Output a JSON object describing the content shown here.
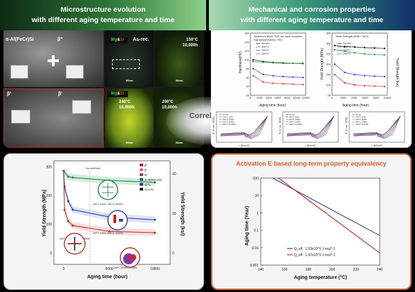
{
  "banners": {
    "left": [
      "Microstructure evolution",
      "with different aging temperature and time"
    ],
    "right": [
      "Mechanical and corrosion properties",
      "with different aging temperature and time"
    ]
  },
  "micro": {
    "phases": {
      "alpha": "α-Al(FeCr)Si",
      "beta_dp": "β''",
      "beta_p": "β'",
      "beta_pp": "β'"
    },
    "element_tag": {
      "mg": "Mg",
      "amp": "&",
      "si": "Si"
    },
    "as_rec": "As-rec.",
    "c150": [
      "150°C",
      "10,000h"
    ],
    "c200": [
      "200°C",
      "10,000h"
    ],
    "c240": [
      "240°C",
      "10,000h"
    ],
    "scale": {
      "s50": "50nm",
      "s50b": "50nm",
      "s58a": "58nm",
      "s58b": "58nm"
    }
  },
  "correlation": "Correlation",
  "top_charts": {
    "hardness": {
      "legend_title": [
        "Aluminum 6061 T6/O for each condition",
        "Hardness(Vickers, HV)"
      ],
      "series": [
        "As-rec.",
        "150°C",
        "200°C",
        "240°C"
      ],
      "xlabel": "Aging time (hour)",
      "ylabel": "Hardness(HV)",
      "yticks": [
        "160",
        "140",
        "120",
        "100",
        "80",
        "60",
        "40",
        "20"
      ],
      "xticks": [
        "0",
        "2000",
        "4000",
        "6000",
        "8000",
        "10000",
        "12000"
      ],
      "colors": [
        "#111111",
        "#2c9a3a",
        "#3a3aff",
        "#e03030"
      ],
      "data": [
        [
          100,
          96,
          94,
          93,
          92,
          92
        ],
        [
          96,
          94,
          93,
          92,
          92,
          91
        ],
        [
          80,
          67,
          64,
          62,
          61,
          60
        ],
        [
          64,
          50,
          47,
          46,
          45,
          44
        ]
      ]
    },
    "yield": {
      "legend_title": "Yield Strength (6061 T6/O)",
      "series": [
        "As-rec.",
        "150°C",
        "200°C",
        "240°C"
      ],
      "xlabel": "Aging time (hour)",
      "ylabel": "Yield Strength (MPa)",
      "ylabel2": "Yield Strength (ksi)",
      "yticks": [
        "350",
        "300",
        "250",
        "200",
        "150",
        "100",
        "50"
      ],
      "xticks": [
        "0",
        "2000",
        "4000",
        "6000",
        "8000",
        "10000"
      ],
      "colors": [
        "#111111",
        "#2c9a3a",
        "#3a3aff",
        "#e03030"
      ],
      "data": [
        [
          290,
          285,
          283,
          280,
          278,
          276
        ],
        [
          270,
          262,
          255,
          250,
          247,
          245
        ],
        [
          200,
          160,
          150,
          145,
          142,
          140
        ],
        [
          150,
          110,
          100,
          96,
          94,
          92
        ]
      ]
    },
    "polarization": {
      "xlabel": "i (A/cm²)",
      "ylabel": "E (V vs. SCE)",
      "legends": [
        [
          "As-rec.",
          "150°C 100h",
          "150°C 1000h",
          "150°C 5000h",
          "150°C 10,000h"
        ],
        [
          "As-rec.",
          "200°C 100h",
          "200°C 1000h",
          "200°C 5000h",
          "200°C 10,000h"
        ],
        [
          "As-rec.",
          "240°C 100h",
          "240°C 1000h",
          "240°C 5000h",
          "240°C 10,000h"
        ]
      ]
    }
  },
  "bottom_left": {
    "ylabel": "Yield Strength (MPa)",
    "ylabel2": "Yield Strength (ksi)",
    "xlabel": "Aging time (hour)",
    "yticks": [
      "300",
      "200",
      "100",
      "0"
    ],
    "yticks2": [
      "40",
      "20",
      "0"
    ],
    "xticks": [
      "0",
      "5000",
      "10000"
    ],
    "as_received": "As-received",
    "legend": [
      "β''",
      "β'",
      "B'",
      "α-Al(FeCr)Si",
      "Q'/C",
      "Cu-clu"
    ],
    "legend_colors": [
      "#cc2222",
      "#dd6688",
      "#aa3366",
      "#555555",
      "#333399",
      "#222222"
    ],
    "annotations": [
      "150°C 100h~ 150°C 10000h",
      "200°C 100h~ 200°C 10000h",
      "240°C 100h~ 240°C 10000h",
      "240°C 5000h~10000h"
    ],
    "series": [
      {
        "color": "#2e8b57",
        "data": [
          [
            0,
            285
          ],
          [
            500,
            265
          ],
          [
            1000,
            262
          ],
          [
            5000,
            252
          ],
          [
            10000,
            245
          ]
        ]
      },
      {
        "color": "#3a4aa8",
        "data": [
          [
            0,
            285
          ],
          [
            100,
            230
          ],
          [
            500,
            180
          ],
          [
            1000,
            150
          ],
          [
            5000,
            125
          ],
          [
            10000,
            115
          ]
        ]
      },
      {
        "color": "#c0392b",
        "data": [
          [
            0,
            285
          ],
          [
            100,
            150
          ],
          [
            500,
            110
          ],
          [
            1000,
            95
          ],
          [
            5000,
            75
          ],
          [
            10000,
            70
          ]
        ]
      }
    ]
  },
  "bottom_right": {
    "title": "Activation E based long-term property equivalency",
    "ylabel": "Aging time (Year)",
    "xlabel": "Aging temperature (°C)",
    "yticks": [
      "100",
      "10",
      "1",
      "0.1",
      "0.01",
      "0.001"
    ],
    "xticks": [
      "140",
      "160",
      "180",
      "200",
      "220",
      "240"
    ],
    "legend": [
      {
        "label": "Q_eff : 1.53x10^5 J·mol^-1",
        "color": "#3a3aa8"
      },
      {
        "label": "Q_eff : 1.97x10^5 J·mol^-1",
        "color": "#cc2222"
      }
    ],
    "lines": [
      {
        "color": "#3a3aa8",
        "data": [
          [
            150,
            100
          ],
          [
            240,
            0.05
          ]
        ]
      },
      {
        "color": "#cc2222",
        "data": [
          [
            155,
            100
          ],
          [
            240,
            0.005
          ]
        ]
      }
    ]
  }
}
